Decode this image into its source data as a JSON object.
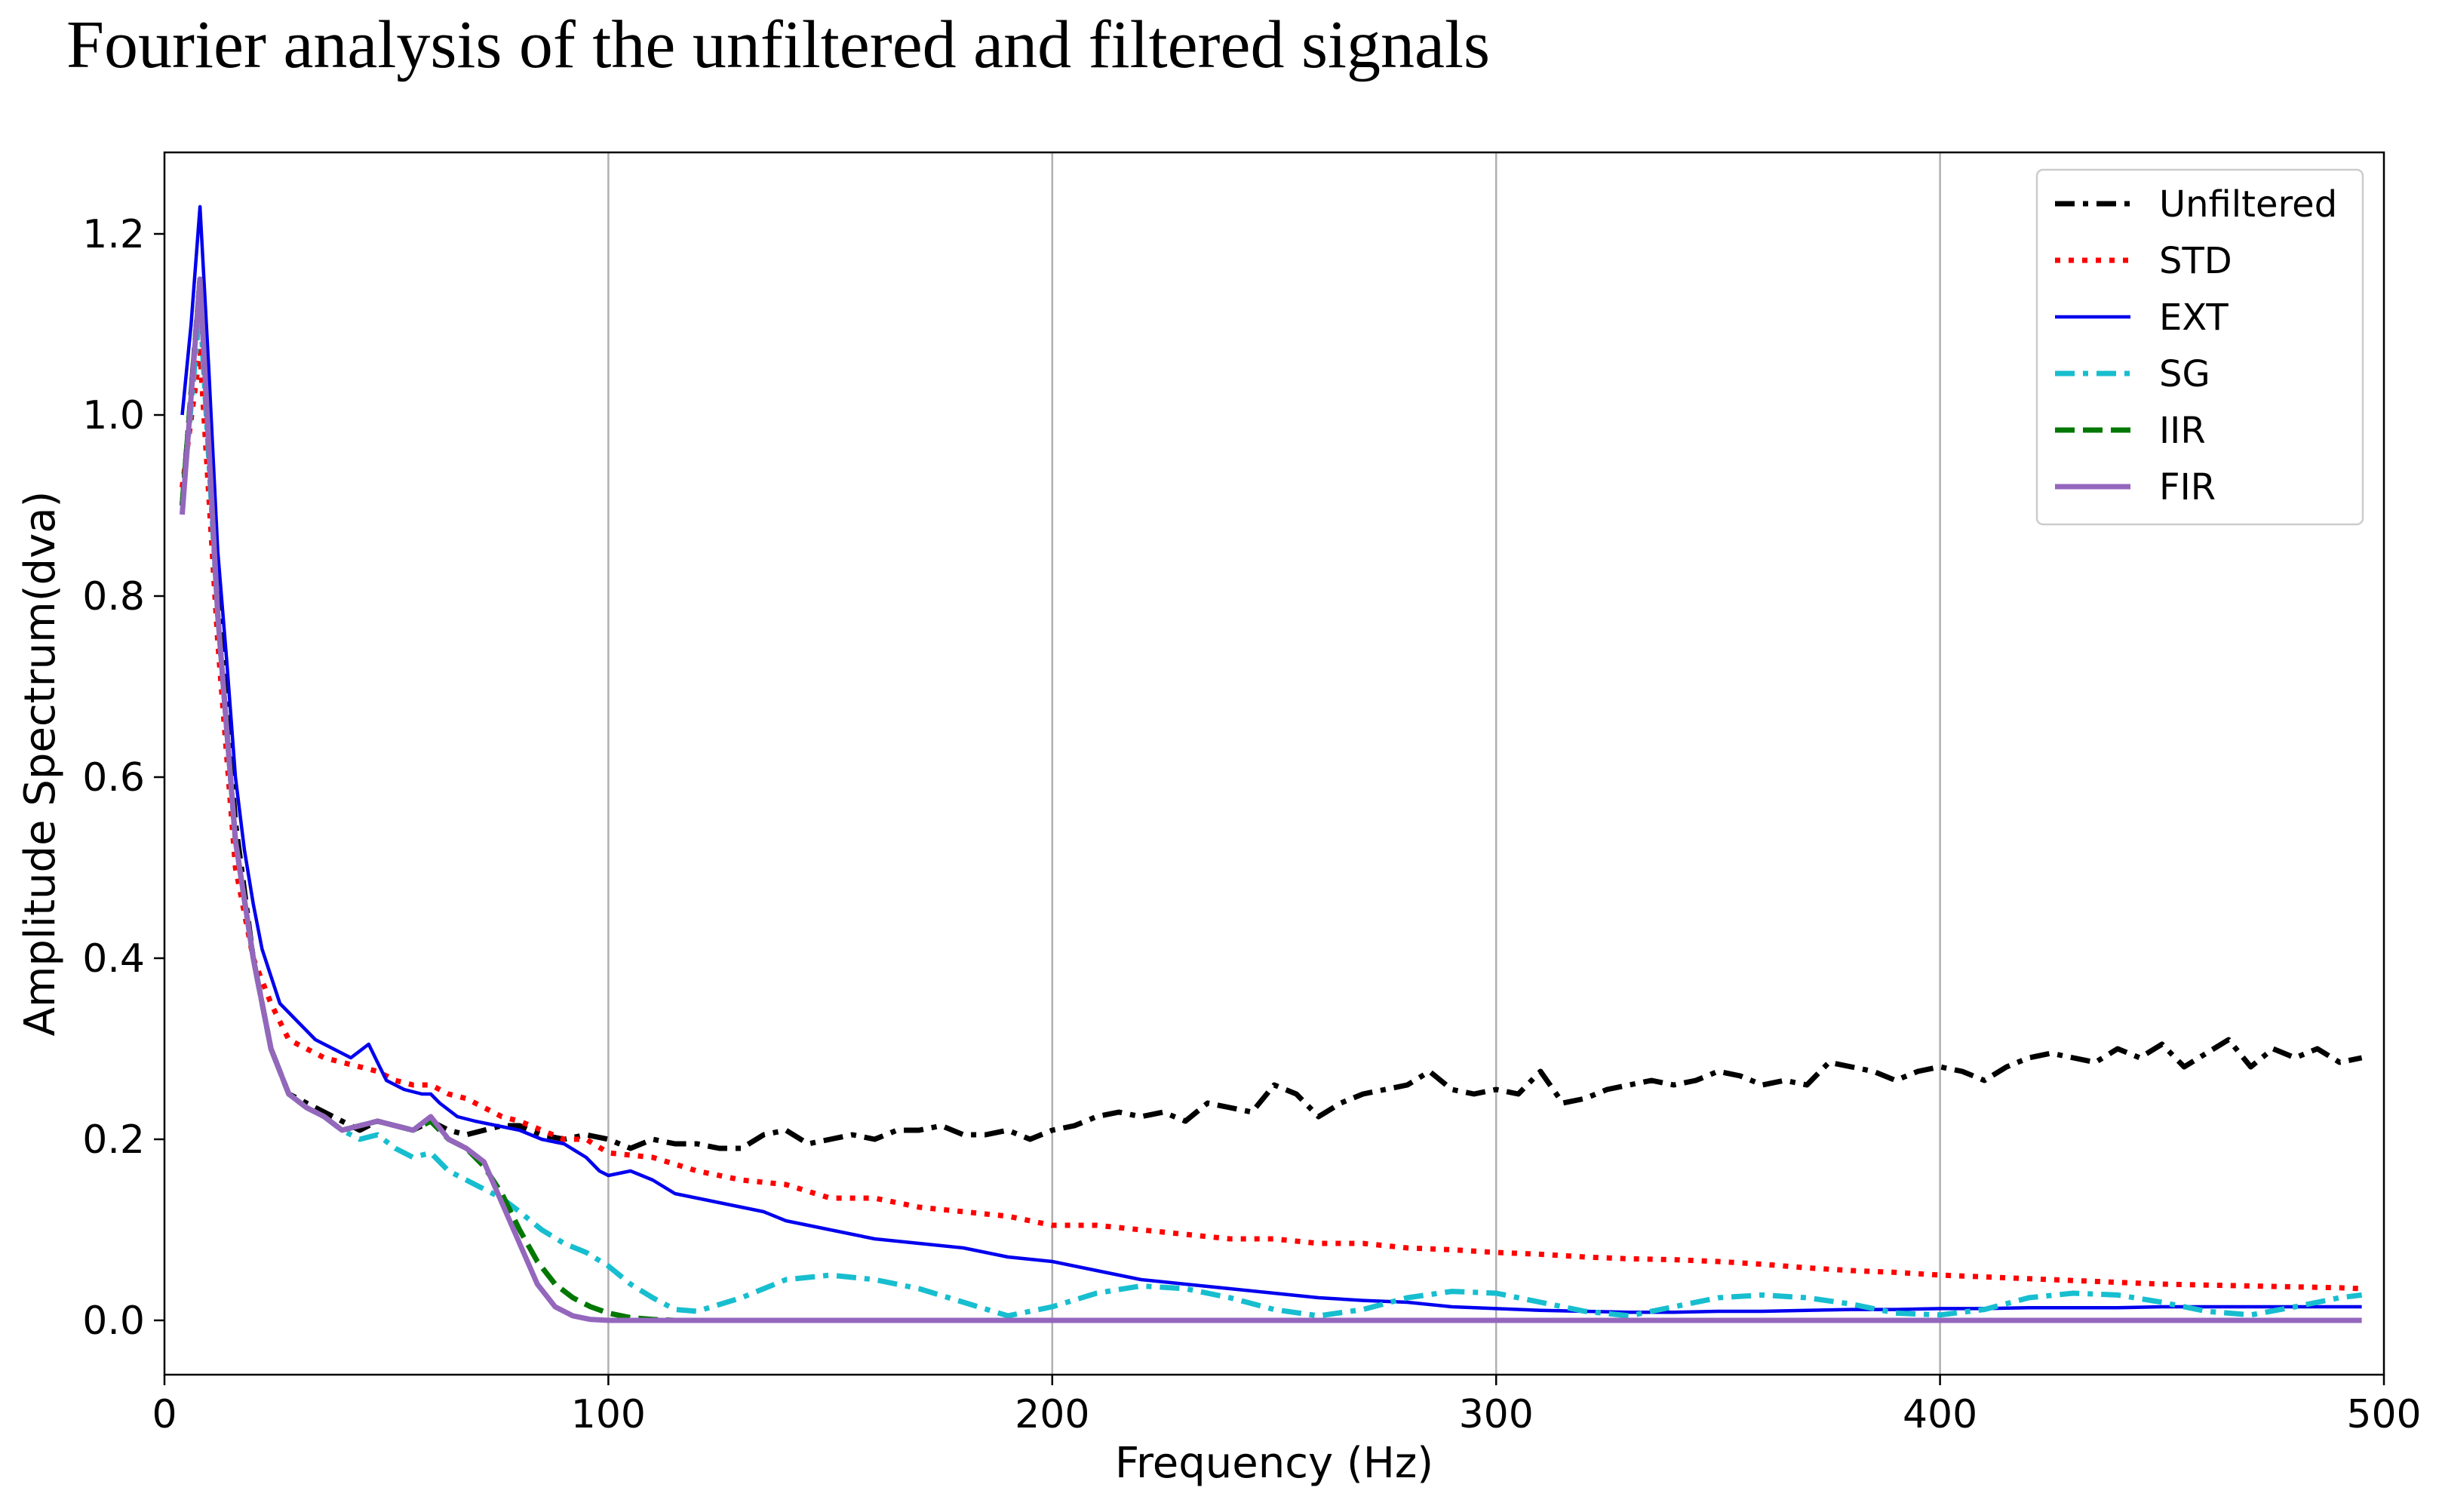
{
  "chart_data": {
    "type": "line",
    "title": "Fourier analysis of the unfiltered and filtered signals",
    "xlabel": "Frequency (Hz)",
    "ylabel": "Amplitude Spectrum(dva)",
    "xlim": [
      0,
      500
    ],
    "ylim": [
      -0.06,
      1.29
    ],
    "xticks": [
      0,
      100,
      200,
      300,
      400,
      500
    ],
    "yticks": [
      0.0,
      0.2,
      0.4,
      0.6,
      0.8,
      1.0,
      1.2
    ],
    "xtick_labels": [
      "0",
      "100",
      "200",
      "300",
      "400",
      "500"
    ],
    "ytick_labels": [
      "0.0",
      "0.2",
      "0.4",
      "0.6",
      "0.8",
      "1.0",
      "1.2"
    ],
    "grid": "vertical",
    "legend_position": "top-right",
    "series": [
      {
        "name": "Unfiltered",
        "color": "#000000",
        "style": "dashdot",
        "x": [
          4,
          8,
          12,
          16,
          20,
          24,
          28,
          32,
          36,
          40,
          44,
          48,
          52,
          56,
          60,
          64,
          68,
          72,
          76,
          80,
          85,
          90,
          95,
          100,
          105,
          110,
          115,
          120,
          125,
          130,
          135,
          140,
          145,
          150,
          155,
          160,
          165,
          170,
          175,
          180,
          185,
          190,
          195,
          200,
          205,
          210,
          215,
          220,
          225,
          230,
          235,
          240,
          245,
          250,
          255,
          260,
          265,
          270,
          275,
          280,
          285,
          290,
          295,
          300,
          305,
          310,
          315,
          320,
          325,
          330,
          335,
          340,
          345,
          350,
          355,
          360,
          365,
          370,
          375,
          380,
          385,
          390,
          395,
          400,
          405,
          410,
          415,
          420,
          425,
          430,
          435,
          440,
          445,
          450,
          455,
          460,
          465,
          470,
          475,
          480,
          485,
          490,
          495
        ],
        "y": [
          0.9,
          1.15,
          0.8,
          0.55,
          0.4,
          0.3,
          0.25,
          0.24,
          0.23,
          0.22,
          0.21,
          0.22,
          0.215,
          0.21,
          0.22,
          0.21,
          0.205,
          0.21,
          0.215,
          0.215,
          0.205,
          0.2,
          0.205,
          0.2,
          0.19,
          0.2,
          0.195,
          0.195,
          0.19,
          0.19,
          0.205,
          0.21,
          0.195,
          0.2,
          0.205,
          0.2,
          0.21,
          0.21,
          0.215,
          0.205,
          0.205,
          0.21,
          0.2,
          0.21,
          0.215,
          0.225,
          0.23,
          0.225,
          0.23,
          0.22,
          0.24,
          0.235,
          0.23,
          0.26,
          0.25,
          0.225,
          0.24,
          0.25,
          0.255,
          0.26,
          0.275,
          0.255,
          0.25,
          0.255,
          0.25,
          0.275,
          0.24,
          0.245,
          0.255,
          0.26,
          0.265,
          0.26,
          0.265,
          0.275,
          0.27,
          0.26,
          0.265,
          0.26,
          0.285,
          0.28,
          0.275,
          0.265,
          0.275,
          0.28,
          0.275,
          0.265,
          0.28,
          0.29,
          0.295,
          0.29,
          0.285,
          0.3,
          0.29,
          0.305,
          0.28,
          0.295,
          0.31,
          0.28,
          0.3,
          0.29,
          0.3,
          0.285,
          0.29
        ]
      },
      {
        "name": "STD",
        "color": "#ff0000",
        "style": "dotted",
        "x": [
          4,
          8,
          12,
          16,
          20,
          24,
          28,
          32,
          36,
          40,
          44,
          48,
          52,
          56,
          60,
          64,
          68,
          72,
          76,
          80,
          85,
          90,
          95,
          100,
          110,
          120,
          130,
          140,
          150,
          160,
          170,
          180,
          190,
          200,
          210,
          220,
          230,
          240,
          250,
          260,
          270,
          280,
          290,
          300,
          310,
          320,
          330,
          340,
          350,
          360,
          370,
          380,
          390,
          400,
          410,
          420,
          430,
          440,
          450,
          460,
          470,
          480,
          490,
          495
        ],
        "y": [
          0.92,
          1.07,
          0.75,
          0.5,
          0.4,
          0.35,
          0.31,
          0.3,
          0.29,
          0.285,
          0.28,
          0.275,
          0.265,
          0.26,
          0.26,
          0.25,
          0.245,
          0.235,
          0.225,
          0.22,
          0.21,
          0.2,
          0.2,
          0.185,
          0.18,
          0.165,
          0.155,
          0.15,
          0.135,
          0.135,
          0.125,
          0.12,
          0.115,
          0.105,
          0.105,
          0.1,
          0.095,
          0.09,
          0.09,
          0.085,
          0.085,
          0.08,
          0.078,
          0.075,
          0.073,
          0.07,
          0.068,
          0.067,
          0.065,
          0.062,
          0.058,
          0.055,
          0.053,
          0.05,
          0.048,
          0.046,
          0.044,
          0.042,
          0.04,
          0.039,
          0.038,
          0.037,
          0.036,
          0.035
        ]
      },
      {
        "name": "EXT",
        "color": "#0000ee",
        "style": "solid",
        "x": [
          4,
          6,
          8,
          10,
          12,
          14,
          16,
          18,
          20,
          22,
          24,
          26,
          28,
          30,
          34,
          38,
          42,
          46,
          48,
          50,
          54,
          58,
          60,
          62,
          66,
          70,
          75,
          80,
          85,
          90,
          95,
          98,
          100,
          105,
          110,
          115,
          120,
          125,
          130,
          135,
          140,
          150,
          160,
          170,
          180,
          190,
          200,
          210,
          220,
          230,
          240,
          250,
          260,
          270,
          280,
          290,
          300,
          310,
          320,
          330,
          340,
          350,
          360,
          370,
          380,
          390,
          400,
          410,
          420,
          430,
          440,
          450,
          460,
          470,
          480,
          490,
          495
        ],
        "y": [
          1.0,
          1.1,
          1.23,
          1.05,
          0.85,
          0.73,
          0.6,
          0.52,
          0.46,
          0.41,
          0.38,
          0.35,
          0.34,
          0.33,
          0.31,
          0.3,
          0.29,
          0.305,
          0.285,
          0.265,
          0.255,
          0.25,
          0.25,
          0.24,
          0.225,
          0.22,
          0.215,
          0.21,
          0.2,
          0.195,
          0.18,
          0.165,
          0.16,
          0.165,
          0.155,
          0.14,
          0.135,
          0.13,
          0.125,
          0.12,
          0.11,
          0.1,
          0.09,
          0.085,
          0.08,
          0.07,
          0.065,
          0.055,
          0.045,
          0.04,
          0.035,
          0.03,
          0.025,
          0.022,
          0.02,
          0.015,
          0.013,
          0.011,
          0.01,
          0.009,
          0.009,
          0.01,
          0.01,
          0.011,
          0.012,
          0.012,
          0.013,
          0.013,
          0.014,
          0.014,
          0.014,
          0.015,
          0.015,
          0.015,
          0.015,
          0.015,
          0.015
        ]
      },
      {
        "name": "SG",
        "color": "#17becf",
        "style": "dashdot",
        "x": [
          4,
          8,
          12,
          16,
          20,
          24,
          28,
          32,
          36,
          40,
          44,
          48,
          52,
          56,
          60,
          64,
          68,
          72,
          76,
          80,
          85,
          90,
          95,
          100,
          105,
          110,
          115,
          120,
          130,
          140,
          150,
          160,
          170,
          180,
          190,
          200,
          210,
          220,
          230,
          240,
          250,
          260,
          270,
          280,
          290,
          300,
          310,
          320,
          330,
          340,
          350,
          360,
          370,
          380,
          390,
          400,
          410,
          420,
          430,
          440,
          450,
          460,
          470,
          480,
          490,
          495
        ],
        "y": [
          0.9,
          1.12,
          0.78,
          0.53,
          0.4,
          0.3,
          0.25,
          0.235,
          0.225,
          0.21,
          0.2,
          0.205,
          0.19,
          0.18,
          0.185,
          0.165,
          0.155,
          0.145,
          0.135,
          0.12,
          0.1,
          0.085,
          0.075,
          0.06,
          0.04,
          0.025,
          0.012,
          0.01,
          0.025,
          0.045,
          0.05,
          0.045,
          0.035,
          0.02,
          0.005,
          0.015,
          0.03,
          0.038,
          0.035,
          0.025,
          0.012,
          0.005,
          0.012,
          0.025,
          0.032,
          0.03,
          0.02,
          0.01,
          0.005,
          0.015,
          0.025,
          0.028,
          0.025,
          0.018,
          0.008,
          0.006,
          0.012,
          0.025,
          0.03,
          0.028,
          0.02,
          0.01,
          0.006,
          0.015,
          0.025,
          0.028
        ]
      },
      {
        "name": "IIR",
        "color": "#007700",
        "style": "dashed",
        "x": [
          4,
          8,
          12,
          16,
          20,
          24,
          28,
          32,
          36,
          40,
          44,
          48,
          52,
          56,
          60,
          64,
          68,
          72,
          76,
          80,
          84,
          88,
          92,
          96,
          100,
          105,
          110,
          115,
          120,
          140,
          160,
          200,
          300,
          400,
          495
        ],
        "y": [
          0.9,
          1.15,
          0.78,
          0.53,
          0.4,
          0.3,
          0.25,
          0.235,
          0.225,
          0.21,
          0.215,
          0.22,
          0.215,
          0.21,
          0.22,
          0.2,
          0.19,
          0.17,
          0.14,
          0.1,
          0.065,
          0.04,
          0.025,
          0.015,
          0.008,
          0.003,
          0.001,
          0.0,
          0.0,
          0.0,
          0.0,
          0.0,
          0.0,
          0.0,
          0.0
        ]
      },
      {
        "name": "FIR",
        "color": "#9467bd",
        "style": "solid",
        "x": [
          4,
          8,
          12,
          16,
          20,
          24,
          28,
          32,
          36,
          40,
          44,
          48,
          52,
          56,
          60,
          64,
          68,
          72,
          76,
          80,
          84,
          88,
          92,
          96,
          100,
          105,
          110,
          115,
          120,
          140,
          160,
          200,
          300,
          400,
          495
        ],
        "y": [
          0.89,
          1.15,
          0.78,
          0.53,
          0.4,
          0.3,
          0.25,
          0.235,
          0.225,
          0.21,
          0.215,
          0.22,
          0.215,
          0.21,
          0.225,
          0.2,
          0.19,
          0.175,
          0.13,
          0.085,
          0.04,
          0.015,
          0.005,
          0.001,
          0.0,
          0.0,
          0.0,
          0.0,
          0.0,
          0.0,
          0.0,
          0.0,
          0.0,
          0.0,
          0.0
        ]
      }
    ]
  }
}
